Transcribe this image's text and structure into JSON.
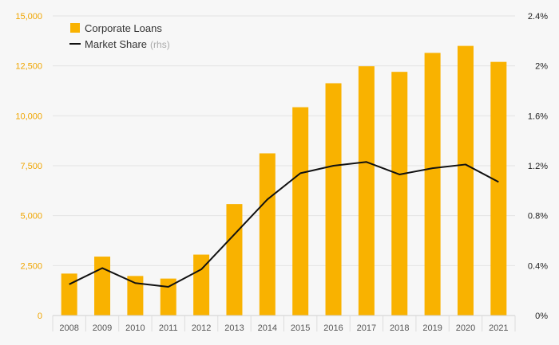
{
  "chart_data": {
    "type": "bar",
    "categories": [
      "2008",
      "2009",
      "2010",
      "2011",
      "2012",
      "2013",
      "2014",
      "2015",
      "2016",
      "2017",
      "2018",
      "2019",
      "2020",
      "2021"
    ],
    "series": [
      {
        "name": "Corporate Loans",
        "type": "bar",
        "axis": "left",
        "color": "#f9b200",
        "values": [
          2100,
          2950,
          1980,
          1850,
          3050,
          5580,
          8120,
          10430,
          11630,
          12480,
          12200,
          13150,
          13500,
          12700
        ]
      },
      {
        "name": "Market Share",
        "name_suffix": "(rhs)",
        "type": "line",
        "axis": "right",
        "color": "#111111",
        "values": [
          0.25,
          0.38,
          0.26,
          0.23,
          0.37,
          0.65,
          0.93,
          1.14,
          1.2,
          1.23,
          1.13,
          1.18,
          1.21,
          1.07
        ]
      }
    ],
    "y_left": {
      "ylim": [
        0,
        15000
      ],
      "ticks": [
        0,
        2500,
        5000,
        7500,
        10000,
        12500,
        15000
      ],
      "tick_labels": [
        "0",
        "2,500",
        "5,000",
        "7,500",
        "10,000",
        "12,500",
        "15,000"
      ],
      "color": "#f0a500"
    },
    "y_right": {
      "ylim": [
        0,
        2.4
      ],
      "ticks": [
        0,
        0.4,
        0.8,
        1.2,
        1.6,
        2.0,
        2.4
      ],
      "tick_labels": [
        "0%",
        "0.4%",
        "0.8%",
        "1.2%",
        "1.6%",
        "2%",
        "2.4%"
      ],
      "color": "#222222"
    },
    "grid": true,
    "legend": "top-left"
  }
}
